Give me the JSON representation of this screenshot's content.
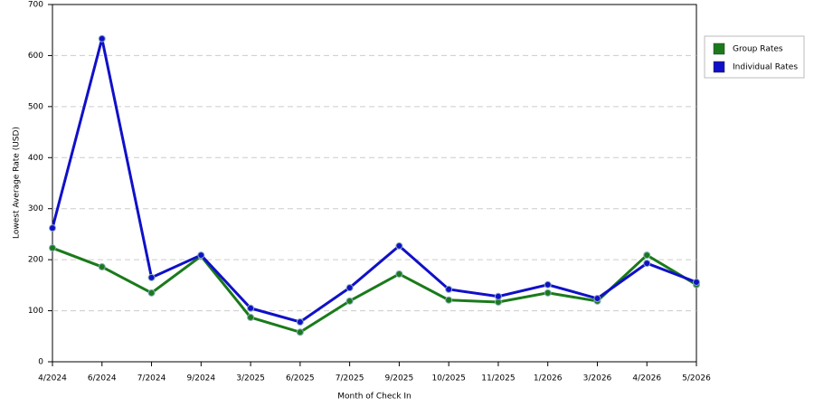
{
  "chart_data": {
    "type": "line",
    "x_label": "Month of Check In",
    "y_label": "Lowest Average Rate (USD)",
    "categories": [
      "4/2024",
      "6/2024",
      "7/2024",
      "9/2024",
      "3/2025",
      "6/2025",
      "7/2025",
      "9/2025",
      "10/2025",
      "11/2025",
      "1/2026",
      "3/2026",
      "4/2026",
      "5/2026"
    ],
    "series": [
      {
        "name": "Group Rates",
        "color": "#1a7a1a",
        "values": [
          223,
          186,
          135,
          207,
          87,
          58,
          119,
          172,
          121,
          117,
          135,
          119,
          209,
          151
        ]
      },
      {
        "name": "Individual Rates",
        "color": "#1010c8",
        "values": [
          262,
          633,
          165,
          209,
          105,
          78,
          145,
          227,
          142,
          128,
          151,
          124,
          193,
          156
        ]
      }
    ],
    "ylim": [
      0,
      700
    ],
    "yticks": [
      0,
      100,
      200,
      300,
      400,
      500,
      600,
      700
    ],
    "grid": true,
    "legend": "right"
  }
}
